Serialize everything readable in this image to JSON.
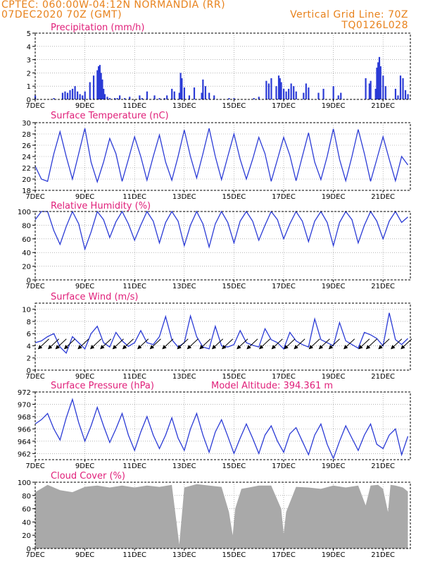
{
  "header": {
    "left1": "CPTEC:  060:00W-04:12N  NORMANDIA (RR)",
    "left2": "07DEC2020 70Z (GMT)",
    "right1": "Vertical Grid Line: 70Z",
    "right2": "TQ0126L028"
  },
  "colors": {
    "series": "#2b3bd6",
    "title": "#e0207a",
    "header": "#e8821c",
    "cloud": "#a9a9a9",
    "grid": "#888888"
  },
  "x_ticks": [
    "7DEC",
    "9DEC",
    "11DEC",
    "13DEC",
    "15DEC",
    "17DEC",
    "19DEC",
    "21DEC"
  ],
  "x_tick_days": [
    7,
    9,
    11,
    13,
    15,
    17,
    19,
    21
  ],
  "x_range": [
    7,
    22.1
  ],
  "chart_data": [
    {
      "id": "precip",
      "type": "bar",
      "title": "Precipitation (mm/h)",
      "ylim": [
        0,
        5
      ],
      "yticks": [
        0,
        1,
        2,
        3,
        4,
        5
      ],
      "days": [
        7.0,
        7.75,
        8.1,
        8.2,
        8.3,
        8.4,
        8.5,
        8.6,
        8.7,
        8.8,
        8.9,
        9.0,
        9.2,
        9.35,
        9.5,
        9.55,
        9.6,
        9.65,
        9.7,
        9.75,
        9.8,
        9.9,
        10.0,
        10.2,
        10.3,
        10.4,
        10.6,
        10.8,
        11.2,
        11.3,
        11.5,
        11.8,
        12.0,
        12.2,
        12.3,
        12.5,
        12.6,
        12.8,
        12.85,
        12.9,
        13.0,
        13.2,
        13.4,
        13.7,
        13.75,
        13.85,
        14.0,
        14.2,
        14.8,
        15.0,
        15.8,
        16.0,
        16.3,
        16.4,
        16.5,
        16.7,
        16.8,
        16.85,
        16.9,
        17.0,
        17.1,
        17.2,
        17.3,
        17.4,
        17.5,
        17.8,
        17.9,
        18.0,
        18.4,
        18.6,
        19.0,
        19.2,
        19.3,
        20.3,
        20.45,
        20.5,
        20.7,
        20.75,
        20.8,
        20.85,
        20.9,
        21.0,
        21.1,
        21.5,
        21.6,
        21.7,
        21.8,
        21.9,
        22.0
      ],
      "values": [
        0.3,
        0.1,
        0.5,
        0.6,
        0.5,
        0.7,
        0.8,
        1.0,
        0.6,
        0.4,
        0.3,
        0.6,
        1.3,
        1.8,
        2.2,
        2.5,
        2.6,
        2.0,
        1.5,
        0.8,
        0.4,
        0.2,
        0.1,
        0.1,
        0.1,
        0.3,
        0.1,
        0.2,
        0.3,
        0.1,
        0.6,
        0.3,
        0.1,
        0.1,
        0.3,
        0.8,
        0.6,
        0.5,
        2.0,
        1.6,
        0.9,
        0.3,
        0.9,
        0.5,
        1.5,
        1.0,
        0.5,
        0.3,
        0.1,
        0.1,
        0.1,
        0.2,
        1.4,
        1.2,
        1.6,
        1.0,
        1.8,
        1.6,
        1.3,
        0.8,
        0.6,
        0.8,
        1.2,
        1.0,
        0.6,
        0.5,
        1.2,
        0.9,
        0.5,
        0.8,
        1.0,
        0.3,
        0.5,
        1.6,
        1.2,
        1.4,
        0.8,
        2.4,
        2.8,
        3.2,
        2.5,
        1.8,
        1.0,
        0.8,
        0.3,
        1.8,
        1.6,
        0.7,
        0.4
      ]
    },
    {
      "id": "temp",
      "type": "line",
      "title": "Surface Temperature (nC)",
      "ylim": [
        18,
        30
      ],
      "yticks": [
        18,
        20,
        22,
        24,
        26,
        28,
        30
      ],
      "x": [
        7.0,
        7.25,
        7.5,
        7.75,
        8.0,
        8.25,
        8.5,
        8.75,
        9.0,
        9.25,
        9.5,
        9.75,
        10.0,
        10.25,
        10.5,
        10.75,
        11.0,
        11.25,
        11.5,
        11.75,
        12.0,
        12.25,
        12.5,
        12.75,
        13.0,
        13.25,
        13.5,
        13.75,
        14.0,
        14.25,
        14.5,
        14.75,
        15.0,
        15.25,
        15.5,
        15.75,
        16.0,
        16.25,
        16.5,
        16.75,
        17.0,
        17.25,
        17.5,
        17.75,
        18.0,
        18.25,
        18.5,
        18.75,
        19.0,
        19.25,
        19.5,
        19.75,
        20.0,
        20.25,
        20.5,
        20.75,
        21.0,
        21.25,
        21.5,
        21.75,
        22.0
      ],
      "y": [
        22.3,
        20.0,
        19.6,
        24.5,
        28.4,
        24.0,
        20.0,
        24.5,
        29.0,
        23.0,
        19.5,
        23.0,
        27.2,
        24.5,
        19.6,
        23.5,
        27.5,
        24.0,
        19.8,
        24.0,
        27.8,
        23.0,
        19.8,
        24.0,
        28.7,
        24.0,
        20.2,
        24.5,
        29.0,
        24.0,
        19.9,
        24.0,
        28.0,
        23.5,
        20.0,
        23.5,
        27.4,
        24.5,
        19.6,
        23.5,
        27.4,
        24.2,
        19.7,
        24.0,
        28.2,
        23.0,
        19.9,
        24.0,
        28.9,
        23.5,
        19.7,
        24.0,
        28.8,
        24.5,
        19.6,
        23.5,
        27.5,
        23.5,
        19.7,
        24.0,
        22.5
      ]
    },
    {
      "id": "rh",
      "type": "line",
      "title": "Relative Humidity (%)",
      "ylim": [
        0,
        100
      ],
      "yticks": [
        0,
        20,
        40,
        60,
        80,
        100
      ],
      "x": [
        7.0,
        7.25,
        7.5,
        7.75,
        8.0,
        8.25,
        8.5,
        8.75,
        9.0,
        9.25,
        9.5,
        9.75,
        10.0,
        10.25,
        10.5,
        10.75,
        11.0,
        11.25,
        11.5,
        11.75,
        12.0,
        12.25,
        12.5,
        12.75,
        13.0,
        13.25,
        13.5,
        13.75,
        14.0,
        14.25,
        14.5,
        14.75,
        15.0,
        15.25,
        15.5,
        15.75,
        16.0,
        16.25,
        16.5,
        16.75,
        17.0,
        17.25,
        17.5,
        17.75,
        18.0,
        18.25,
        18.5,
        18.75,
        19.0,
        19.25,
        19.5,
        19.75,
        20.0,
        20.25,
        20.5,
        20.75,
        21.0,
        21.25,
        21.5,
        21.75,
        22.0
      ],
      "y": [
        88,
        100,
        100,
        72,
        52,
        78,
        100,
        82,
        45,
        70,
        100,
        88,
        62,
        85,
        100,
        82,
        58,
        80,
        100,
        86,
        54,
        84,
        100,
        86,
        50,
        80,
        100,
        82,
        48,
        82,
        100,
        84,
        54,
        86,
        100,
        86,
        58,
        80,
        100,
        88,
        60,
        82,
        100,
        86,
        56,
        86,
        100,
        84,
        50,
        84,
        100,
        88,
        54,
        80,
        100,
        86,
        60,
        86,
        100,
        84,
        92
      ]
    },
    {
      "id": "wind",
      "type": "line",
      "title": "Surface Wind (m/s)",
      "ylim": [
        0,
        11
      ],
      "yticks": [
        0,
        2,
        4,
        6,
        8,
        10
      ],
      "x": [
        7.0,
        7.25,
        7.5,
        7.75,
        8.0,
        8.25,
        8.5,
        8.75,
        9.0,
        9.25,
        9.5,
        9.75,
        10.0,
        10.25,
        10.5,
        10.75,
        11.0,
        11.25,
        11.5,
        11.75,
        12.0,
        12.25,
        12.5,
        12.75,
        13.0,
        13.25,
        13.5,
        13.75,
        14.0,
        14.25,
        14.5,
        14.75,
        15.0,
        15.25,
        15.5,
        15.75,
        16.0,
        16.25,
        16.5,
        16.75,
        17.0,
        17.25,
        17.5,
        17.75,
        18.0,
        18.25,
        18.5,
        18.75,
        19.0,
        19.25,
        19.5,
        19.75,
        20.0,
        20.25,
        20.5,
        20.75,
        21.0,
        21.25,
        21.5,
        21.75,
        22.0
      ],
      "y": [
        4.5,
        4.8,
        5.5,
        6.0,
        3.8,
        2.8,
        5.5,
        4.5,
        3.5,
        6.0,
        7.2,
        4.5,
        3.8,
        6.2,
        4.8,
        3.9,
        4.5,
        6.5,
        4.5,
        4.2,
        5.5,
        8.8,
        5.0,
        3.8,
        4.5,
        8.9,
        5.5,
        3.8,
        3.5,
        7.2,
        4.0,
        3.8,
        4.2,
        6.5,
        4.5,
        4.1,
        3.8,
        6.8,
        5.0,
        4.5,
        3.5,
        6.2,
        4.8,
        4.2,
        3.8,
        8.4,
        5.0,
        4.5,
        4.0,
        7.8,
        4.8,
        4.2,
        3.6,
        6.2,
        5.8,
        5.2,
        4.0,
        9.4,
        5.0,
        4.2,
        5.2
      ],
      "arrows_x": [
        7.3,
        7.7,
        8.0,
        8.35,
        8.9,
        9.4,
        9.8,
        10.3,
        10.7,
        11.3,
        11.8,
        12.3,
        12.9,
        13.3,
        13.8,
        14.3,
        14.7,
        15.3,
        15.7,
        16.2,
        16.7,
        17.2,
        17.6,
        18.2,
        18.6,
        19.0,
        19.6,
        20.2,
        20.5,
        21.0,
        21.5,
        21.9
      ]
    },
    {
      "id": "pres",
      "type": "line",
      "title": "Surface Pressure (hPa)",
      "subtitle": "Model Altitude: 394.361 m",
      "ylim": [
        961,
        972
      ],
      "yticks": [
        962,
        964,
        966,
        968,
        970,
        972
      ],
      "x": [
        7.0,
        7.25,
        7.5,
        7.75,
        8.0,
        8.25,
        8.5,
        8.75,
        9.0,
        9.25,
        9.5,
        9.75,
        10.0,
        10.25,
        10.5,
        10.75,
        11.0,
        11.25,
        11.5,
        11.75,
        12.0,
        12.25,
        12.5,
        12.75,
        13.0,
        13.25,
        13.5,
        13.75,
        14.0,
        14.25,
        14.5,
        14.75,
        15.0,
        15.25,
        15.5,
        15.75,
        16.0,
        16.25,
        16.5,
        16.75,
        17.0,
        17.25,
        17.5,
        17.75,
        18.0,
        18.25,
        18.5,
        18.75,
        19.0,
        19.25,
        19.5,
        19.75,
        20.0,
        20.25,
        20.5,
        20.75,
        21.0,
        21.25,
        21.5,
        21.75,
        22.0
      ],
      "y": [
        966.8,
        967.5,
        968.5,
        966.0,
        964.2,
        967.8,
        970.8,
        967.0,
        964.0,
        966.5,
        969.5,
        966.5,
        963.8,
        966.0,
        968.5,
        965.0,
        962.5,
        965.5,
        968.0,
        965.0,
        962.8,
        965.0,
        967.8,
        964.5,
        962.5,
        966.0,
        968.5,
        965.0,
        962.2,
        965.5,
        967.5,
        964.8,
        962.0,
        964.5,
        966.8,
        964.5,
        962.0,
        965.0,
        966.5,
        964.0,
        962.2,
        965.2,
        966.2,
        964.0,
        961.8,
        965.0,
        966.8,
        963.5,
        961.2,
        964.0,
        966.5,
        964.5,
        962.5,
        965.0,
        966.8,
        963.5,
        962.8,
        965.0,
        966.0,
        961.8,
        964.8
      ]
    },
    {
      "id": "cloud",
      "type": "area",
      "title": "Cloud Cover (%)",
      "ylim": [
        0,
        100
      ],
      "yticks": [
        0,
        20,
        40,
        60,
        80,
        100
      ],
      "x": [
        7.0,
        7.5,
        8.0,
        8.5,
        9.0,
        9.5,
        10.0,
        10.5,
        11.0,
        11.5,
        12.0,
        12.5,
        12.8,
        13.0,
        13.5,
        14.0,
        14.5,
        14.8,
        14.95,
        15.05,
        15.3,
        15.6,
        16.0,
        16.5,
        16.9,
        17.0,
        17.1,
        17.5,
        18.0,
        18.5,
        19.0,
        19.5,
        20.0,
        20.3,
        20.5,
        20.8,
        21.0,
        21.2,
        21.3,
        21.5,
        21.8,
        22.0
      ],
      "y": [
        85,
        96,
        88,
        85,
        93,
        95,
        92,
        95,
        92,
        95,
        93,
        96,
        6,
        92,
        97,
        95,
        93,
        55,
        20,
        60,
        90,
        92,
        95,
        95,
        60,
        22,
        55,
        93,
        92,
        90,
        95,
        92,
        95,
        65,
        95,
        96,
        90,
        55,
        96,
        95,
        92,
        86
      ]
    }
  ]
}
